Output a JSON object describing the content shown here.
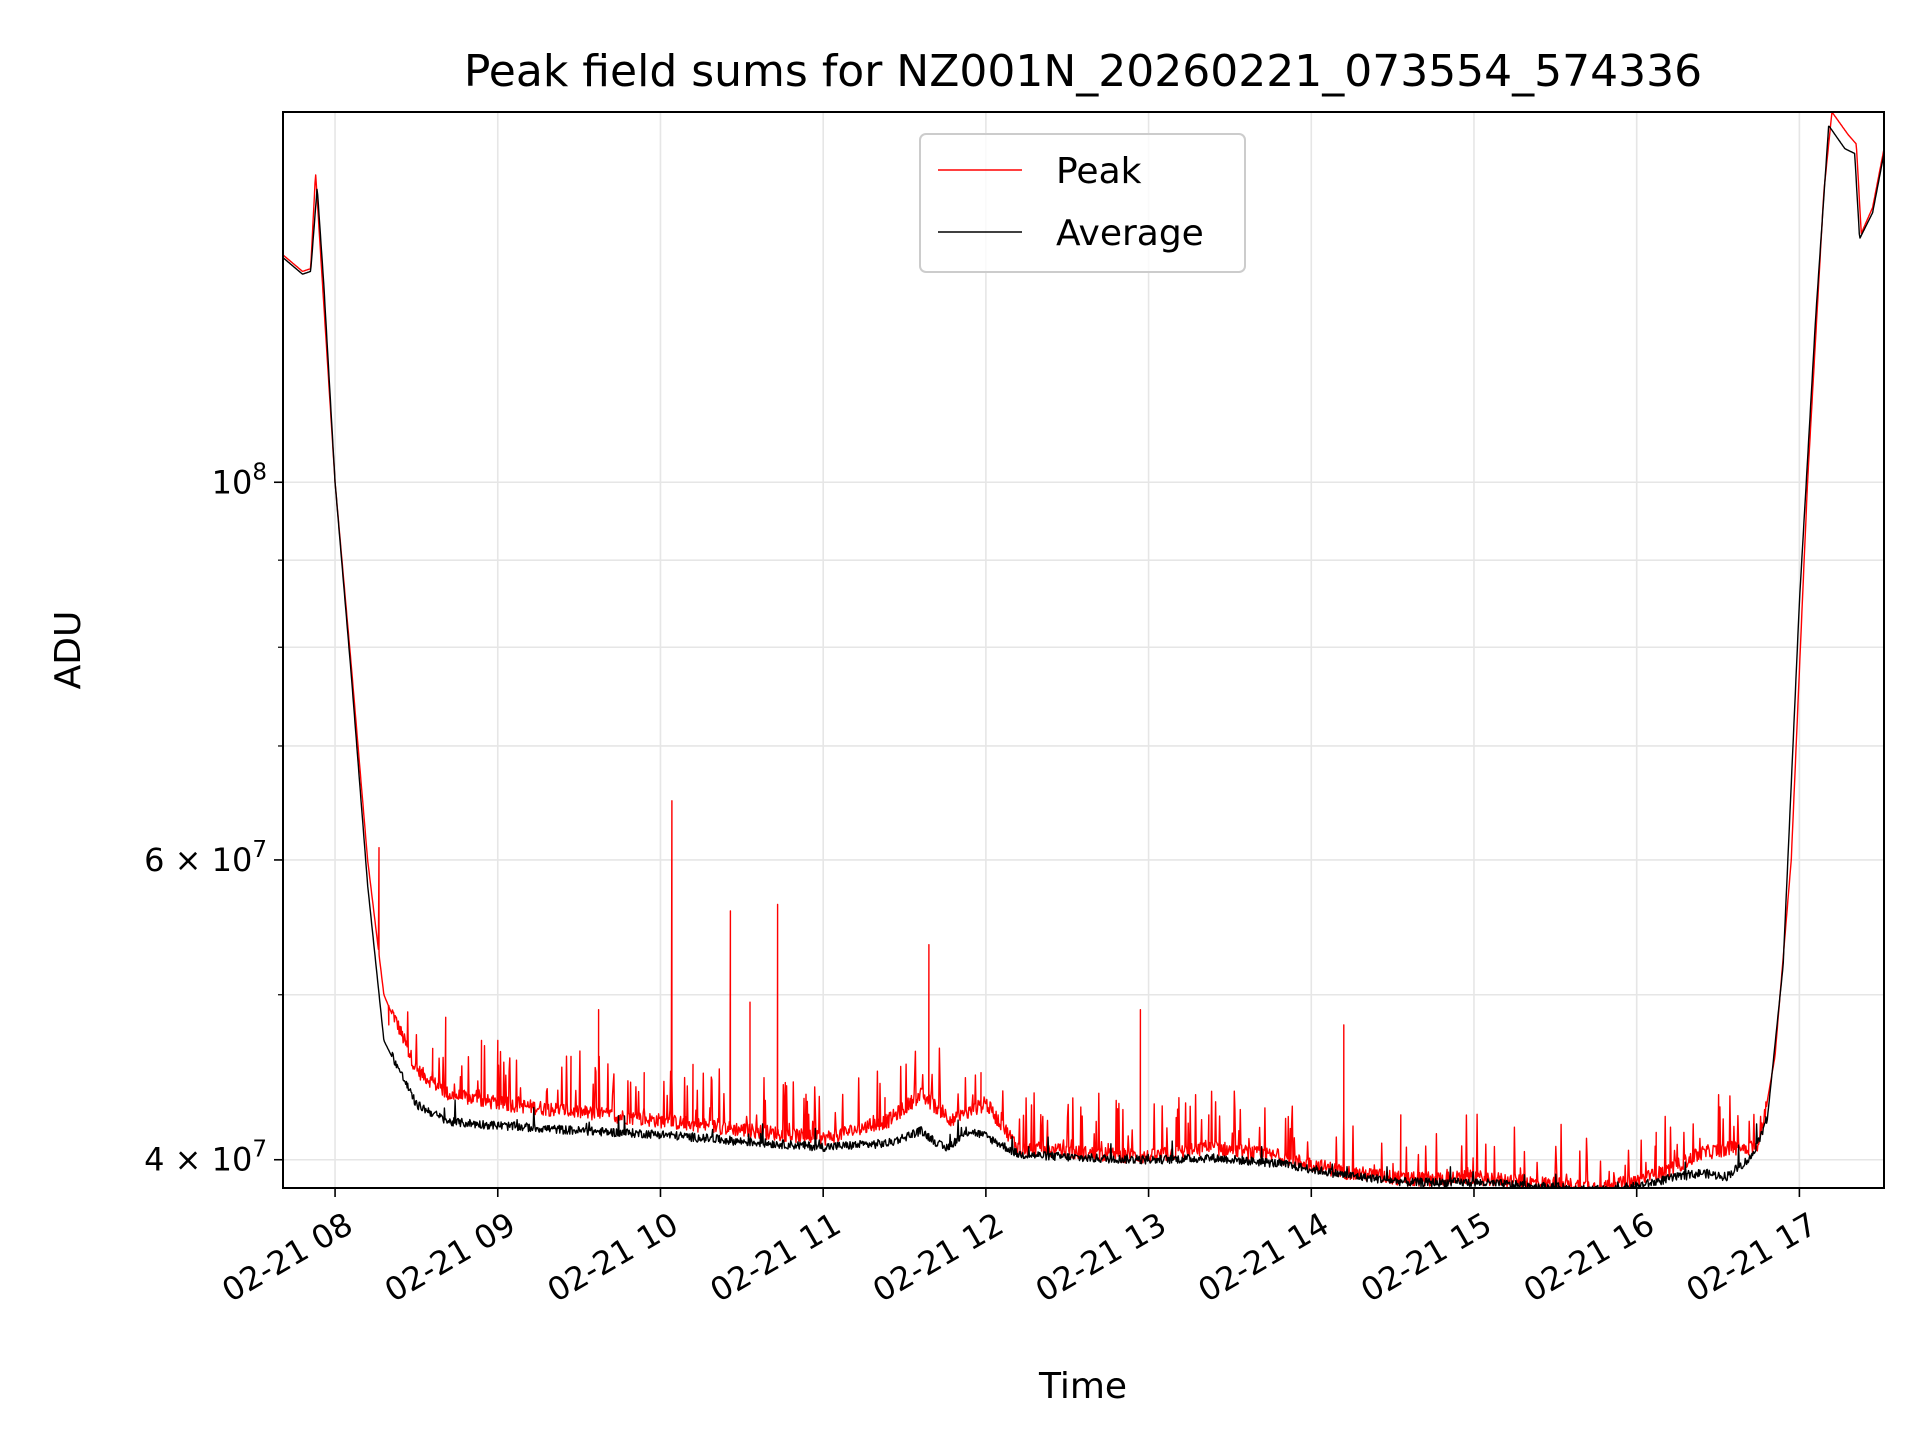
{
  "chart_data": {
    "type": "line",
    "title": "Peak field sums for NZ001N_20260221_073554_574336",
    "xlabel": "Time",
    "ylabel": "ADU",
    "yscale": "log",
    "ylim": [
      38500000,
      165000000
    ],
    "xlim_hours": [
      7.68,
      17.52
    ],
    "grid": true,
    "legend_loc": "upper center",
    "x_ticks": [
      {
        "hour": 8,
        "label": "02-21 08"
      },
      {
        "hour": 9,
        "label": "02-21 09"
      },
      {
        "hour": 10,
        "label": "02-21 10"
      },
      {
        "hour": 11,
        "label": "02-21 11"
      },
      {
        "hour": 12,
        "label": "02-21 12"
      },
      {
        "hour": 13,
        "label": "02-21 13"
      },
      {
        "hour": 14,
        "label": "02-21 14"
      },
      {
        "hour": 15,
        "label": "02-21 15"
      },
      {
        "hour": 16,
        "label": "02-21 16"
      },
      {
        "hour": 17,
        "label": "02-21 17"
      }
    ],
    "y_major_ticks": [
      {
        "value": 40000000,
        "base": "4 × 10",
        "exp": "7"
      },
      {
        "value": 60000000,
        "base": "6 × 10",
        "exp": "7"
      },
      {
        "value": 100000000,
        "base": "10",
        "exp": "8"
      }
    ],
    "y_minor_ticks": [
      50000000,
      70000000,
      80000000,
      90000000
    ],
    "series": [
      {
        "name": "Peak",
        "color": "#ff0000",
        "description_points_hour_adu": [
          [
            7.68,
            136000000
          ],
          [
            7.8,
            133000000
          ],
          [
            7.85,
            133500000
          ],
          [
            7.88,
            152000000
          ],
          [
            7.92,
            132000000
          ],
          [
            8.0,
            100000000
          ],
          [
            8.1,
            78000000
          ],
          [
            8.2,
            60000000
          ],
          [
            8.3,
            50000000
          ],
          [
            8.5,
            45000000
          ],
          [
            8.7,
            43500000
          ],
          [
            9.0,
            43000000
          ],
          [
            9.5,
            42500000
          ],
          [
            10.0,
            42000000
          ],
          [
            10.5,
            41500000
          ],
          [
            11.0,
            41000000
          ],
          [
            11.4,
            42000000
          ],
          [
            11.6,
            43500000
          ],
          [
            11.8,
            42000000
          ],
          [
            12.0,
            43000000
          ],
          [
            12.2,
            40500000
          ],
          [
            12.6,
            40200000
          ],
          [
            13.0,
            40000000
          ],
          [
            13.4,
            40500000
          ],
          [
            13.8,
            40000000
          ],
          [
            14.2,
            39200000
          ],
          [
            14.6,
            38800000
          ],
          [
            15.0,
            38900000
          ],
          [
            15.4,
            38600000
          ],
          [
            15.8,
            38400000
          ],
          [
            16.0,
            38700000
          ],
          [
            16.2,
            39300000
          ],
          [
            16.4,
            40200000
          ],
          [
            16.6,
            40500000
          ],
          [
            16.75,
            40500000
          ],
          [
            16.85,
            46000000
          ],
          [
            16.95,
            60000000
          ],
          [
            17.05,
            100000000
          ],
          [
            17.15,
            148000000
          ],
          [
            17.2,
            165000000
          ],
          [
            17.3,
            160000000
          ],
          [
            17.35,
            158000000
          ],
          [
            17.38,
            140000000
          ],
          [
            17.45,
            145000000
          ],
          [
            17.52,
            157000000
          ]
        ],
        "spikes_hour_adu": [
          [
            8.27,
            61000000
          ],
          [
            8.33,
            48000000
          ],
          [
            8.4,
            47500000
          ],
          [
            8.5,
            47000000
          ],
          [
            8.6,
            46500000
          ],
          [
            8.68,
            48500000
          ],
          [
            8.9,
            47000000
          ],
          [
            9.0,
            47000000
          ],
          [
            9.45,
            46000000
          ],
          [
            9.62,
            49000000
          ],
          [
            9.9,
            45000000
          ],
          [
            10.07,
            65000000
          ],
          [
            10.2,
            45500000
          ],
          [
            10.43,
            56000000
          ],
          [
            10.55,
            49500000
          ],
          [
            10.72,
            56500000
          ],
          [
            11.38,
            43500000
          ],
          [
            11.65,
            53500000
          ],
          [
            11.97,
            45000000
          ],
          [
            12.95,
            49000000
          ],
          [
            13.37,
            42500000
          ],
          [
            14.2,
            48000000
          ],
          [
            14.55,
            42500000
          ],
          [
            16.12,
            41500000
          ]
        ]
      },
      {
        "name": "Average",
        "color": "#000000",
        "description_points_hour_adu": [
          [
            7.68,
            135500000
          ],
          [
            7.8,
            132500000
          ],
          [
            7.85,
            133000000
          ],
          [
            7.89,
            149000000
          ],
          [
            7.93,
            131000000
          ],
          [
            8.0,
            100000000
          ],
          [
            8.1,
            77000000
          ],
          [
            8.2,
            58000000
          ],
          [
            8.3,
            47000000
          ],
          [
            8.5,
            43000000
          ],
          [
            8.7,
            42000000
          ],
          [
            9.0,
            41800000
          ],
          [
            9.5,
            41500000
          ],
          [
            10.0,
            41300000
          ],
          [
            10.5,
            40900000
          ],
          [
            11.0,
            40600000
          ],
          [
            11.4,
            40800000
          ],
          [
            11.6,
            41500000
          ],
          [
            11.75,
            40500000
          ],
          [
            11.9,
            41500000
          ],
          [
            12.0,
            41200000
          ],
          [
            12.2,
            40200000
          ],
          [
            12.6,
            40000000
          ],
          [
            13.0,
            39900000
          ],
          [
            13.4,
            40000000
          ],
          [
            13.8,
            39700000
          ],
          [
            14.2,
            39100000
          ],
          [
            14.6,
            38700000
          ],
          [
            15.0,
            38700000
          ],
          [
            15.4,
            38500000
          ],
          [
            15.8,
            38300000
          ],
          [
            16.0,
            38500000
          ],
          [
            16.2,
            38900000
          ],
          [
            16.4,
            39200000
          ],
          [
            16.55,
            39000000
          ],
          [
            16.7,
            40000000
          ],
          [
            16.8,
            42000000
          ],
          [
            16.9,
            52000000
          ],
          [
            17.0,
            85000000
          ],
          [
            17.1,
            125000000
          ],
          [
            17.18,
            162000000
          ],
          [
            17.28,
            157000000
          ],
          [
            17.34,
            156000000
          ],
          [
            17.37,
            139000000
          ],
          [
            17.45,
            144000000
          ],
          [
            17.52,
            156000000
          ]
        ]
      }
    ]
  }
}
